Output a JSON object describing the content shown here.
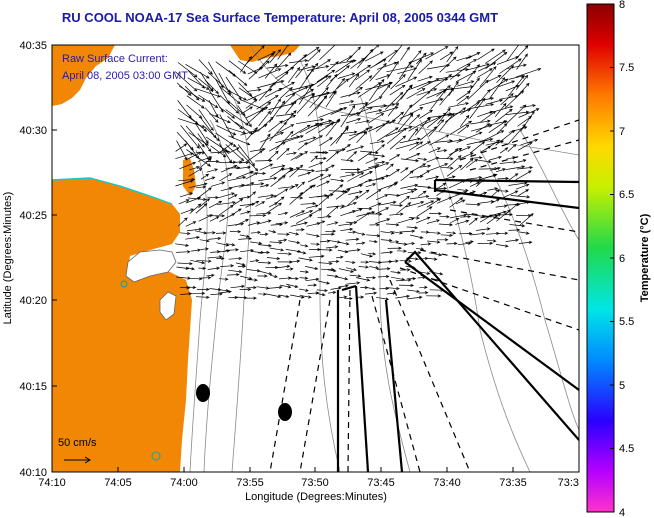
{
  "title": "RU COOL  NOAA-17  Sea Surface Temperature:  April 08, 2005 0344 GMT",
  "annotation": {
    "line1": "Raw Surface Current:",
    "line2": "April 08, 2005 03:00 GMT"
  },
  "scale_label": "50 cm/s",
  "axes": {
    "xlabel": "Longitude (Degrees:Minutes)",
    "ylabel": "Latitude (Degrees:Minutes)",
    "xticks": [
      "74:10",
      "74:05",
      "74:00",
      "73:55",
      "73:50",
      "73:45",
      "73:40",
      "73:35",
      "73:3"
    ],
    "yticks": [
      "40:35",
      "40:30",
      "40:25",
      "40:20",
      "40:15",
      "40:10"
    ]
  },
  "colorbar": {
    "label": "Temperature (°C)",
    "ticks": [
      "8",
      "7.5",
      "7",
      "6.5",
      "6",
      "5.5",
      "5",
      "4.5",
      "4"
    ],
    "range": [
      4,
      8
    ]
  },
  "colors": {
    "land": "#f28705",
    "title": "#1a1aa8",
    "annotation": "#2a1aa8"
  }
}
